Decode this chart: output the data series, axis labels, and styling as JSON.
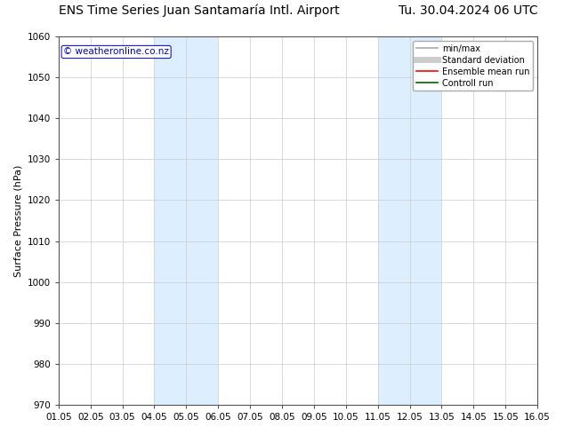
{
  "title_left": "ENS Time Series Juan Santamaría Intl. Airport",
  "title_right": "Tu. 30.04.2024 06 UTC",
  "ylabel": "Surface Pressure (hPa)",
  "watermark": "© weatheronline.co.nz",
  "watermark_color": "#0000cc",
  "ylim": [
    970,
    1060
  ],
  "yticks": [
    970,
    980,
    990,
    1000,
    1010,
    1020,
    1030,
    1040,
    1050,
    1060
  ],
  "xtick_labels": [
    "01.05",
    "02.05",
    "03.05",
    "04.05",
    "05.05",
    "06.05",
    "07.05",
    "08.05",
    "09.05",
    "10.05",
    "11.05",
    "12.05",
    "13.05",
    "14.05",
    "15.05",
    "16.05"
  ],
  "shaded_regions": [
    {
      "xmin": 3.0,
      "xmax": 5.0,
      "color": "#ddeeff"
    },
    {
      "xmin": 10.0,
      "xmax": 12.0,
      "color": "#ddeeff"
    }
  ],
  "background_color": "#ffffff",
  "plot_bg_color": "#ffffff",
  "grid_color": "#cccccc",
  "legend_items": [
    {
      "label": "min/max",
      "color": "#aaaaaa",
      "lw": 1.2,
      "style": "solid"
    },
    {
      "label": "Standard deviation",
      "color": "#cccccc",
      "lw": 5,
      "style": "solid"
    },
    {
      "label": "Ensemble mean run",
      "color": "#ff0000",
      "lw": 1.2,
      "style": "solid"
    },
    {
      "label": "Controll run",
      "color": "#006400",
      "lw": 1.2,
      "style": "solid"
    }
  ],
  "title_fontsize": 10,
  "axis_label_fontsize": 8,
  "tick_fontsize": 7.5,
  "watermark_fontsize": 7.5,
  "legend_fontsize": 7
}
